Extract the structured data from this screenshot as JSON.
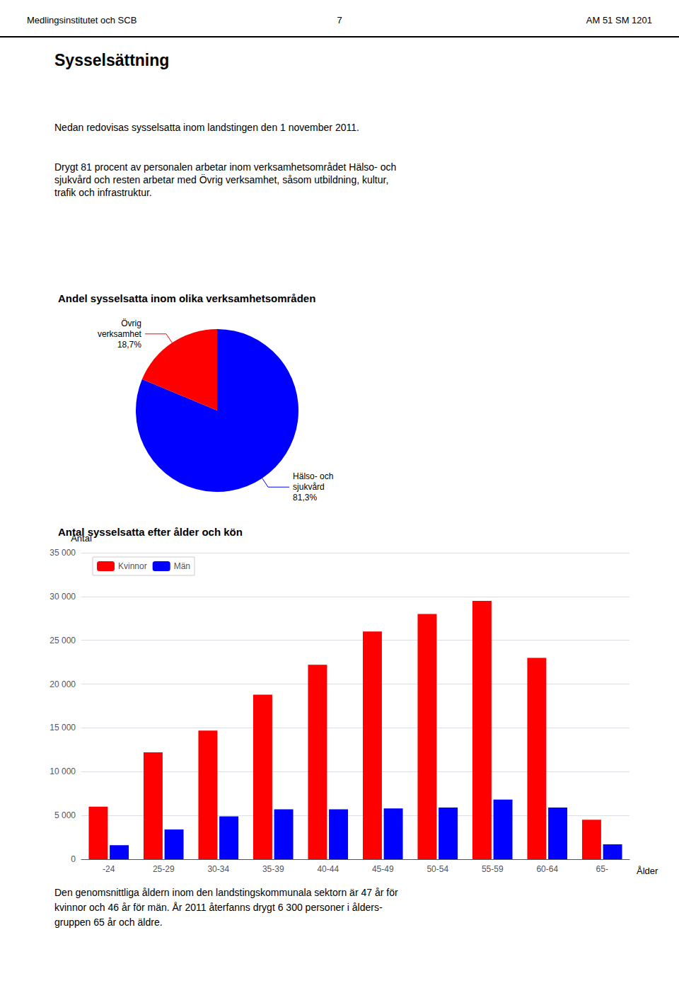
{
  "header": [
    "Medlingsinstitutet och SCB",
    "7",
    "AM 51 SM 1201"
  ],
  "title": "Sysselsättning",
  "text": [
    "Nedan redovisas sysselsatta inom landstingen den 1 november 2011.",
    "Drygt 81 procent av personalen arbetar inom verksamhetsområdet Hälso- och\nsjukvård och resten arbetar med Övrig verksamhet, såsom utbildning, kultur,\ntrafik och infrastruktur."
  ],
  "footer": "Den genomsnittliga åldern inom den landstingskommunala sektorn är 47 år för\nkvinnor och 46 år för män. År 2011 återfanns drygt 6 300 personer i ålders-\ngruppen 65 år och äldre.",
  "chart_data": [
    {
      "type": "pie",
      "title": "Andel sysselsatta inom olika verksamhetsområden",
      "categories": [
        "Hälso- och\nsjukvård",
        "Övrig\nverksamhet"
      ],
      "values": [
        81.3,
        18.7
      ],
      "value_labels": [
        "81,3%",
        "18,7%"
      ],
      "colors": [
        "#0000FF",
        "#FF0000"
      ]
    },
    {
      "type": "bar",
      "title": "Antal sysselsatta efter ålder och kön",
      "xlabel": "Ålder",
      "ylabel": "Antal",
      "categories": [
        "-24",
        "25-29",
        "30-34",
        "35-39",
        "40-44",
        "45-49",
        "50-54",
        "55-59",
        "60-64",
        "65-"
      ],
      "series": [
        {
          "name": "Kvinnor",
          "color": "#FF0000",
          "values": [
            6000,
            12200,
            14700,
            18800,
            22200,
            26000,
            28000,
            29500,
            23000,
            4500
          ]
        },
        {
          "name": "Män",
          "color": "#0000FF",
          "values": [
            1600,
            3400,
            4900,
            5700,
            5700,
            5800,
            5900,
            6800,
            5900,
            1700
          ]
        }
      ],
      "ylim": [
        0,
        35000
      ],
      "yticks": [
        0,
        {
          "value": 5000,
          "label": "5 000"
        },
        {
          "value": 10000,
          "label": "10 000"
        },
        {
          "value": 15000,
          "label": "15 000"
        },
        {
          "value": 20000,
          "label": "20 000"
        },
        {
          "value": 25000,
          "label": "25 000"
        },
        {
          "value": 30000,
          "label": "30 000"
        },
        {
          "value": 35000,
          "label": "35 000"
        }
      ],
      "grid": true,
      "legend": "upper left"
    }
  ]
}
